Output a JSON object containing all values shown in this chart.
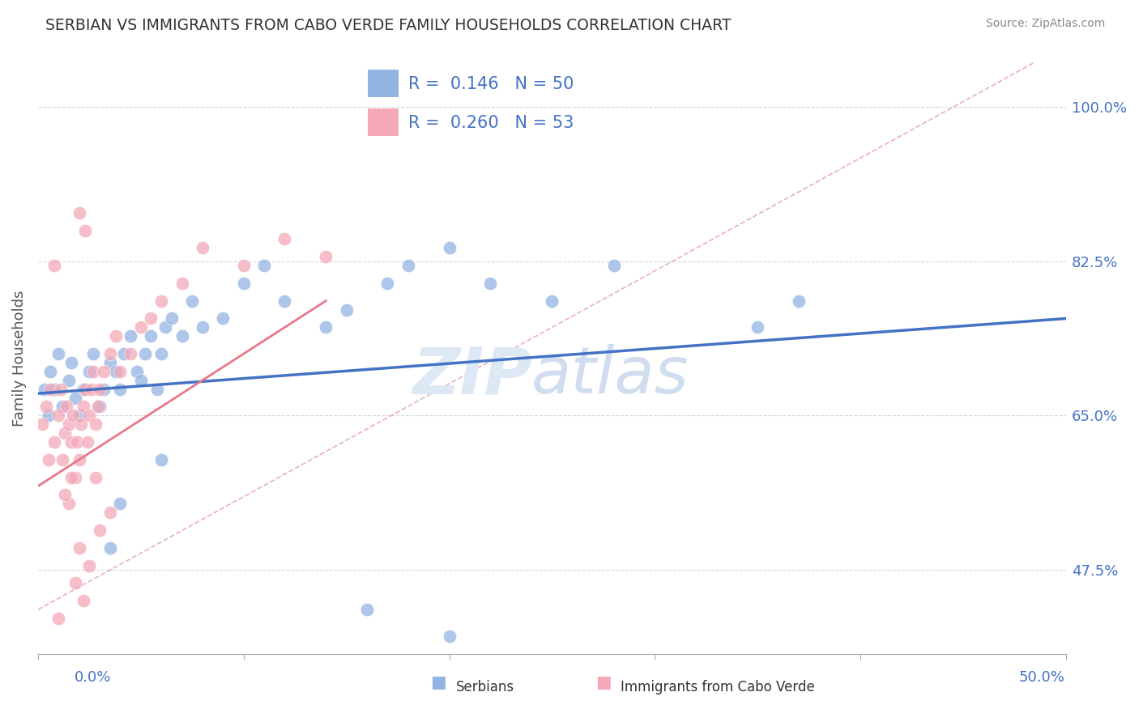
{
  "title": "SERBIAN VS IMMIGRANTS FROM CABO VERDE FAMILY HOUSEHOLDS CORRELATION CHART",
  "source": "Source: ZipAtlas.com",
  "ylabel": "Family Households",
  "xlim": [
    0,
    50
  ],
  "ylim": [
    38,
    105
  ],
  "yticks": [
    47.5,
    65.0,
    82.5,
    100.0
  ],
  "xticks": [
    0,
    10,
    20,
    30,
    40,
    50
  ],
  "series1_label": "Serbians",
  "series2_label": "Immigrants from Cabo Verde",
  "series1_color": "#92b4e3",
  "series2_color": "#f4a8b8",
  "series1_line_color": "#4472c4",
  "series2_line_color": "#e8788a",
  "ref_line_color": "#e8b0bc",
  "R1": 0.146,
  "N1": 50,
  "R2": 0.26,
  "N2": 53,
  "axis_color": "#4472c4",
  "series1_x": [
    0.3,
    0.5,
    0.6,
    0.8,
    1.0,
    1.2,
    1.5,
    1.6,
    1.8,
    2.0,
    2.2,
    2.5,
    2.7,
    3.0,
    3.2,
    3.5,
    3.8,
    4.0,
    4.2,
    4.5,
    4.8,
    5.0,
    5.2,
    5.5,
    5.8,
    6.0,
    6.2,
    6.5,
    7.0,
    7.5,
    8.0,
    9.0,
    10.0,
    11.0,
    12.0,
    14.0,
    15.0,
    17.0,
    18.0,
    20.0,
    22.0,
    25.0,
    28.0,
    35.0,
    37.0,
    3.5,
    4.0,
    6.0,
    16.0,
    20.0
  ],
  "series1_y": [
    68.0,
    65.0,
    70.0,
    68.0,
    72.0,
    66.0,
    69.0,
    71.0,
    67.0,
    65.0,
    68.0,
    70.0,
    72.0,
    66.0,
    68.0,
    71.0,
    70.0,
    68.0,
    72.0,
    74.0,
    70.0,
    69.0,
    72.0,
    74.0,
    68.0,
    72.0,
    75.0,
    76.0,
    74.0,
    78.0,
    75.0,
    76.0,
    80.0,
    82.0,
    78.0,
    75.0,
    77.0,
    80.0,
    82.0,
    84.0,
    80.0,
    78.0,
    82.0,
    75.0,
    78.0,
    50.0,
    55.0,
    60.0,
    43.0,
    40.0
  ],
  "series2_x": [
    0.2,
    0.4,
    0.6,
    0.8,
    1.0,
    1.1,
    1.2,
    1.3,
    1.4,
    1.5,
    1.6,
    1.7,
    1.8,
    1.9,
    2.0,
    2.1,
    2.2,
    2.3,
    2.4,
    2.5,
    2.6,
    2.7,
    2.8,
    2.9,
    3.0,
    3.2,
    3.5,
    3.8,
    4.0,
    4.5,
    5.0,
    5.5,
    6.0,
    7.0,
    8.0,
    10.0,
    12.0,
    14.0,
    1.5,
    2.0,
    2.5,
    3.0,
    1.8,
    2.2,
    1.0,
    1.3,
    2.8,
    3.5,
    0.5,
    1.6,
    2.3,
    0.8,
    2.0
  ],
  "series2_y": [
    64.0,
    66.0,
    68.0,
    62.0,
    65.0,
    68.0,
    60.0,
    63.0,
    66.0,
    64.0,
    62.0,
    65.0,
    58.0,
    62.0,
    60.0,
    64.0,
    66.0,
    68.0,
    62.0,
    65.0,
    68.0,
    70.0,
    64.0,
    66.0,
    68.0,
    70.0,
    72.0,
    74.0,
    70.0,
    72.0,
    75.0,
    76.0,
    78.0,
    80.0,
    84.0,
    82.0,
    85.0,
    83.0,
    55.0,
    50.0,
    48.0,
    52.0,
    46.0,
    44.0,
    42.0,
    56.0,
    58.0,
    54.0,
    60.0,
    58.0,
    86.0,
    82.0,
    88.0
  ]
}
